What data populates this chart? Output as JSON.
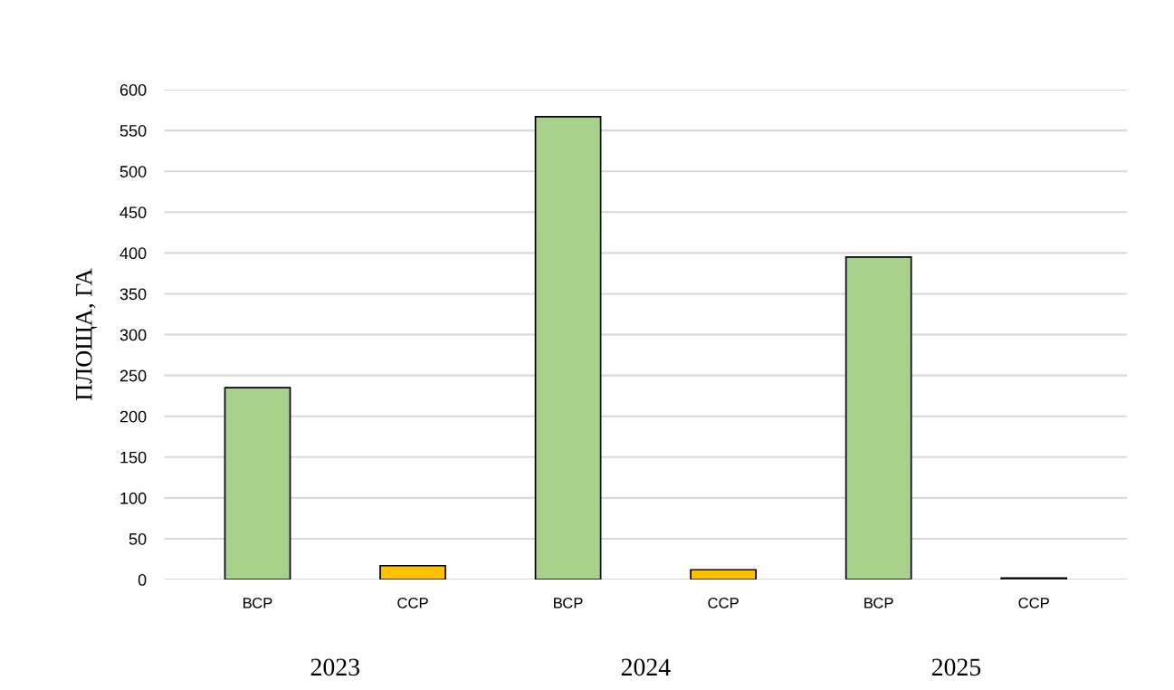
{
  "chart_data": {
    "type": "bar",
    "ylabel": "ПЛОЩА, ГА",
    "categories": [
      "ВСР",
      "ССР",
      "ВСР",
      "ССР",
      "ВСР",
      "ССР"
    ],
    "values": [
      235,
      17,
      567,
      12,
      395,
      2
    ],
    "colors": [
      "#a9d18e",
      "#ffc000",
      "#a9d18e",
      "#ffc000",
      "#a9d18e",
      "#ffc000"
    ],
    "annotations": [
      "2023",
      "2024",
      "2025"
    ],
    "ylim": [
      0,
      600
    ],
    "yticks": [
      0,
      50,
      100,
      150,
      200,
      250,
      300,
      350,
      400,
      450,
      500,
      550,
      600
    ],
    "grid": "y"
  }
}
